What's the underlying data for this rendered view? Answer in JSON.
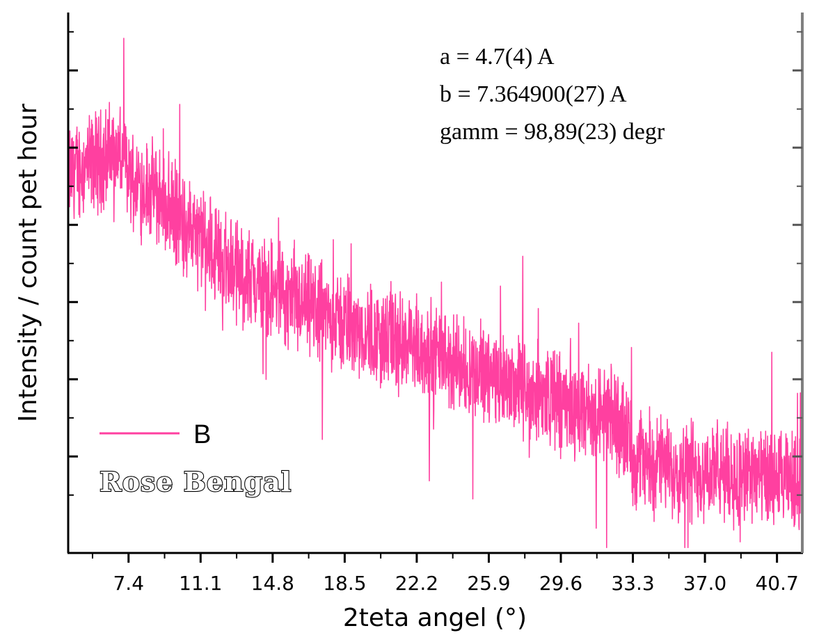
{
  "chart_data": {
    "type": "line",
    "xlabel": "2teta angel (°)",
    "ylabel": "Intensity / count pet hour",
    "xlim": [
      4.3,
      42.0
    ],
    "ylim": [
      0,
      100
    ],
    "x_ticks": [
      "7.4",
      "11.1",
      "14.8",
      "18.5",
      "22.2",
      "25.9",
      "29.6",
      "33.3",
      "37.0",
      "40.7"
    ],
    "y_tick_labels_shown": false,
    "grid": false,
    "legend_position": "bottom-left",
    "sample_label": "Rose Bengal",
    "annotations": [
      "a = 4.7(4) A",
      "b = 7.364900(27) A",
      "gamm = 98,89(23) degr"
    ],
    "series": [
      {
        "name": "B",
        "color": "#ff40a0",
        "noise": "high-frequency, ±7",
        "x": [
          4.3,
          5.5,
          6.5,
          7.0,
          7.5,
          8.0,
          8.5,
          9.0,
          10.0,
          11.0,
          12.0,
          13.0,
          14.0,
          15.0,
          16.0,
          17.0,
          18.0,
          19.0,
          20.0,
          21.0,
          22.0,
          23.0,
          24.0,
          25.0,
          26.0,
          27.0,
          28.0,
          29.0,
          30.0,
          31.0,
          32.0,
          32.8,
          33.3,
          34.0,
          35.0,
          36.0,
          37.0,
          38.0,
          39.0,
          40.0,
          41.0,
          42.0
        ],
        "y": [
          70,
          72,
          74,
          73,
          70,
          68,
          67,
          66,
          62,
          58,
          55,
          52,
          50,
          48,
          46,
          45,
          43,
          42,
          40,
          39,
          38,
          37,
          35,
          34,
          33,
          32,
          30,
          29,
          27,
          26,
          25,
          24,
          18,
          17,
          16,
          15.5,
          15,
          14.5,
          14,
          13.5,
          13,
          13
        ]
      }
    ]
  }
}
